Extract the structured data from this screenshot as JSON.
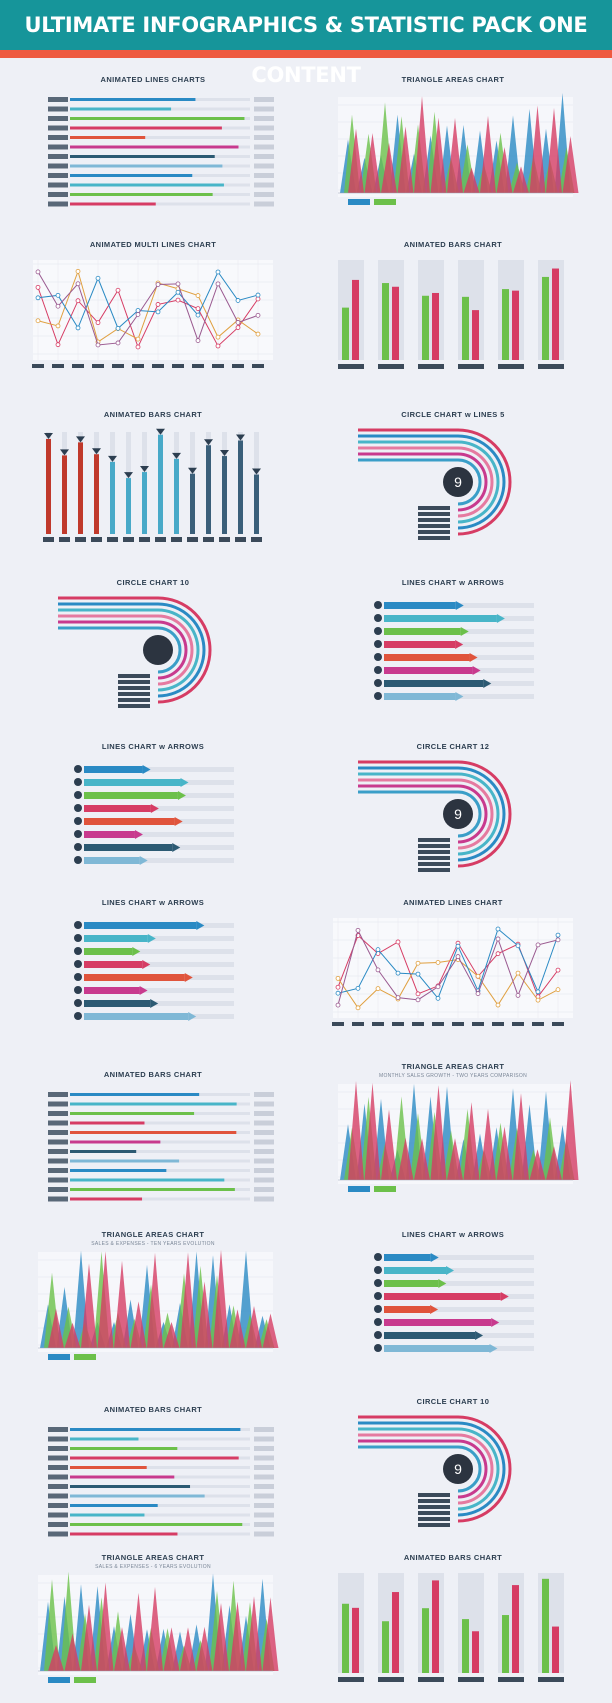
{
  "header": {
    "title": "ULTIMATE INFOGRAPHICS & STATISTIC PACK ONE CONTENT"
  },
  "colors": {
    "teal": "#16959a",
    "red": "#ee5a40",
    "bg": "#eef0f6"
  },
  "panels": [
    {
      "title": "ANIMATED LINES CHARTS",
      "subtitle": "",
      "kind": "hbars"
    },
    {
      "title": "TRIANGLE AREAS CHART",
      "subtitle": "",
      "kind": "triangles"
    },
    {
      "title": "ANIMATED MULTI LINES CHART",
      "subtitle": "",
      "kind": "lines"
    },
    {
      "title": "ANIMATED BARS CHART",
      "subtitle": "",
      "kind": "vbars"
    },
    {
      "title": "ANIMATED BARS CHART",
      "subtitle": "",
      "kind": "lollipop"
    },
    {
      "title": "CIRCLE CHART w LINES 5",
      "subtitle": "",
      "kind": "circle"
    },
    {
      "title": "CIRCLE CHART 10",
      "subtitle": "",
      "kind": "circle"
    },
    {
      "title": "LINES CHART w ARROWS",
      "subtitle": "",
      "kind": "arrows"
    },
    {
      "title": "LINES CHART w ARROWS",
      "subtitle": "",
      "kind": "arrows"
    },
    {
      "title": "CIRCLE CHART 12",
      "subtitle": "",
      "kind": "circle"
    },
    {
      "title": "LINES CHART w ARROWS",
      "subtitle": "",
      "kind": "arrows"
    },
    {
      "title": "ANIMATED LINES CHART",
      "subtitle": "",
      "kind": "lines"
    },
    {
      "title": "ANIMATED BARS CHART",
      "subtitle": "",
      "kind": "hbars"
    },
    {
      "title": "TRIANGLE AREAS CHART",
      "subtitle": "MONTHLY SALES GROWTH - TWO YEARS COMPARISON",
      "kind": "triangles"
    },
    {
      "title": "TRIANGLE AREAS CHART",
      "subtitle": "SALES & EXPENSES - TEN YEARS EVOLUTION",
      "kind": "triangles"
    },
    {
      "title": "LINES CHART w ARROWS",
      "subtitle": "",
      "kind": "arrows"
    },
    {
      "title": "ANIMATED BARS CHART",
      "subtitle": "",
      "kind": "hbars"
    },
    {
      "title": "CIRCLE CHART 10",
      "subtitle": "",
      "kind": "circle"
    },
    {
      "title": "TRIANGLE AREAS CHART",
      "subtitle": "SALES & EXPENSES - 6 YEARS EVOLUTION",
      "kind": "triangles"
    },
    {
      "title": "ANIMATED BARS CHART",
      "subtitle": "",
      "kind": "vbars"
    }
  ],
  "center_numbers": {
    "circle_5": "9",
    "circle_12": "9",
    "circle_10b": "9"
  }
}
